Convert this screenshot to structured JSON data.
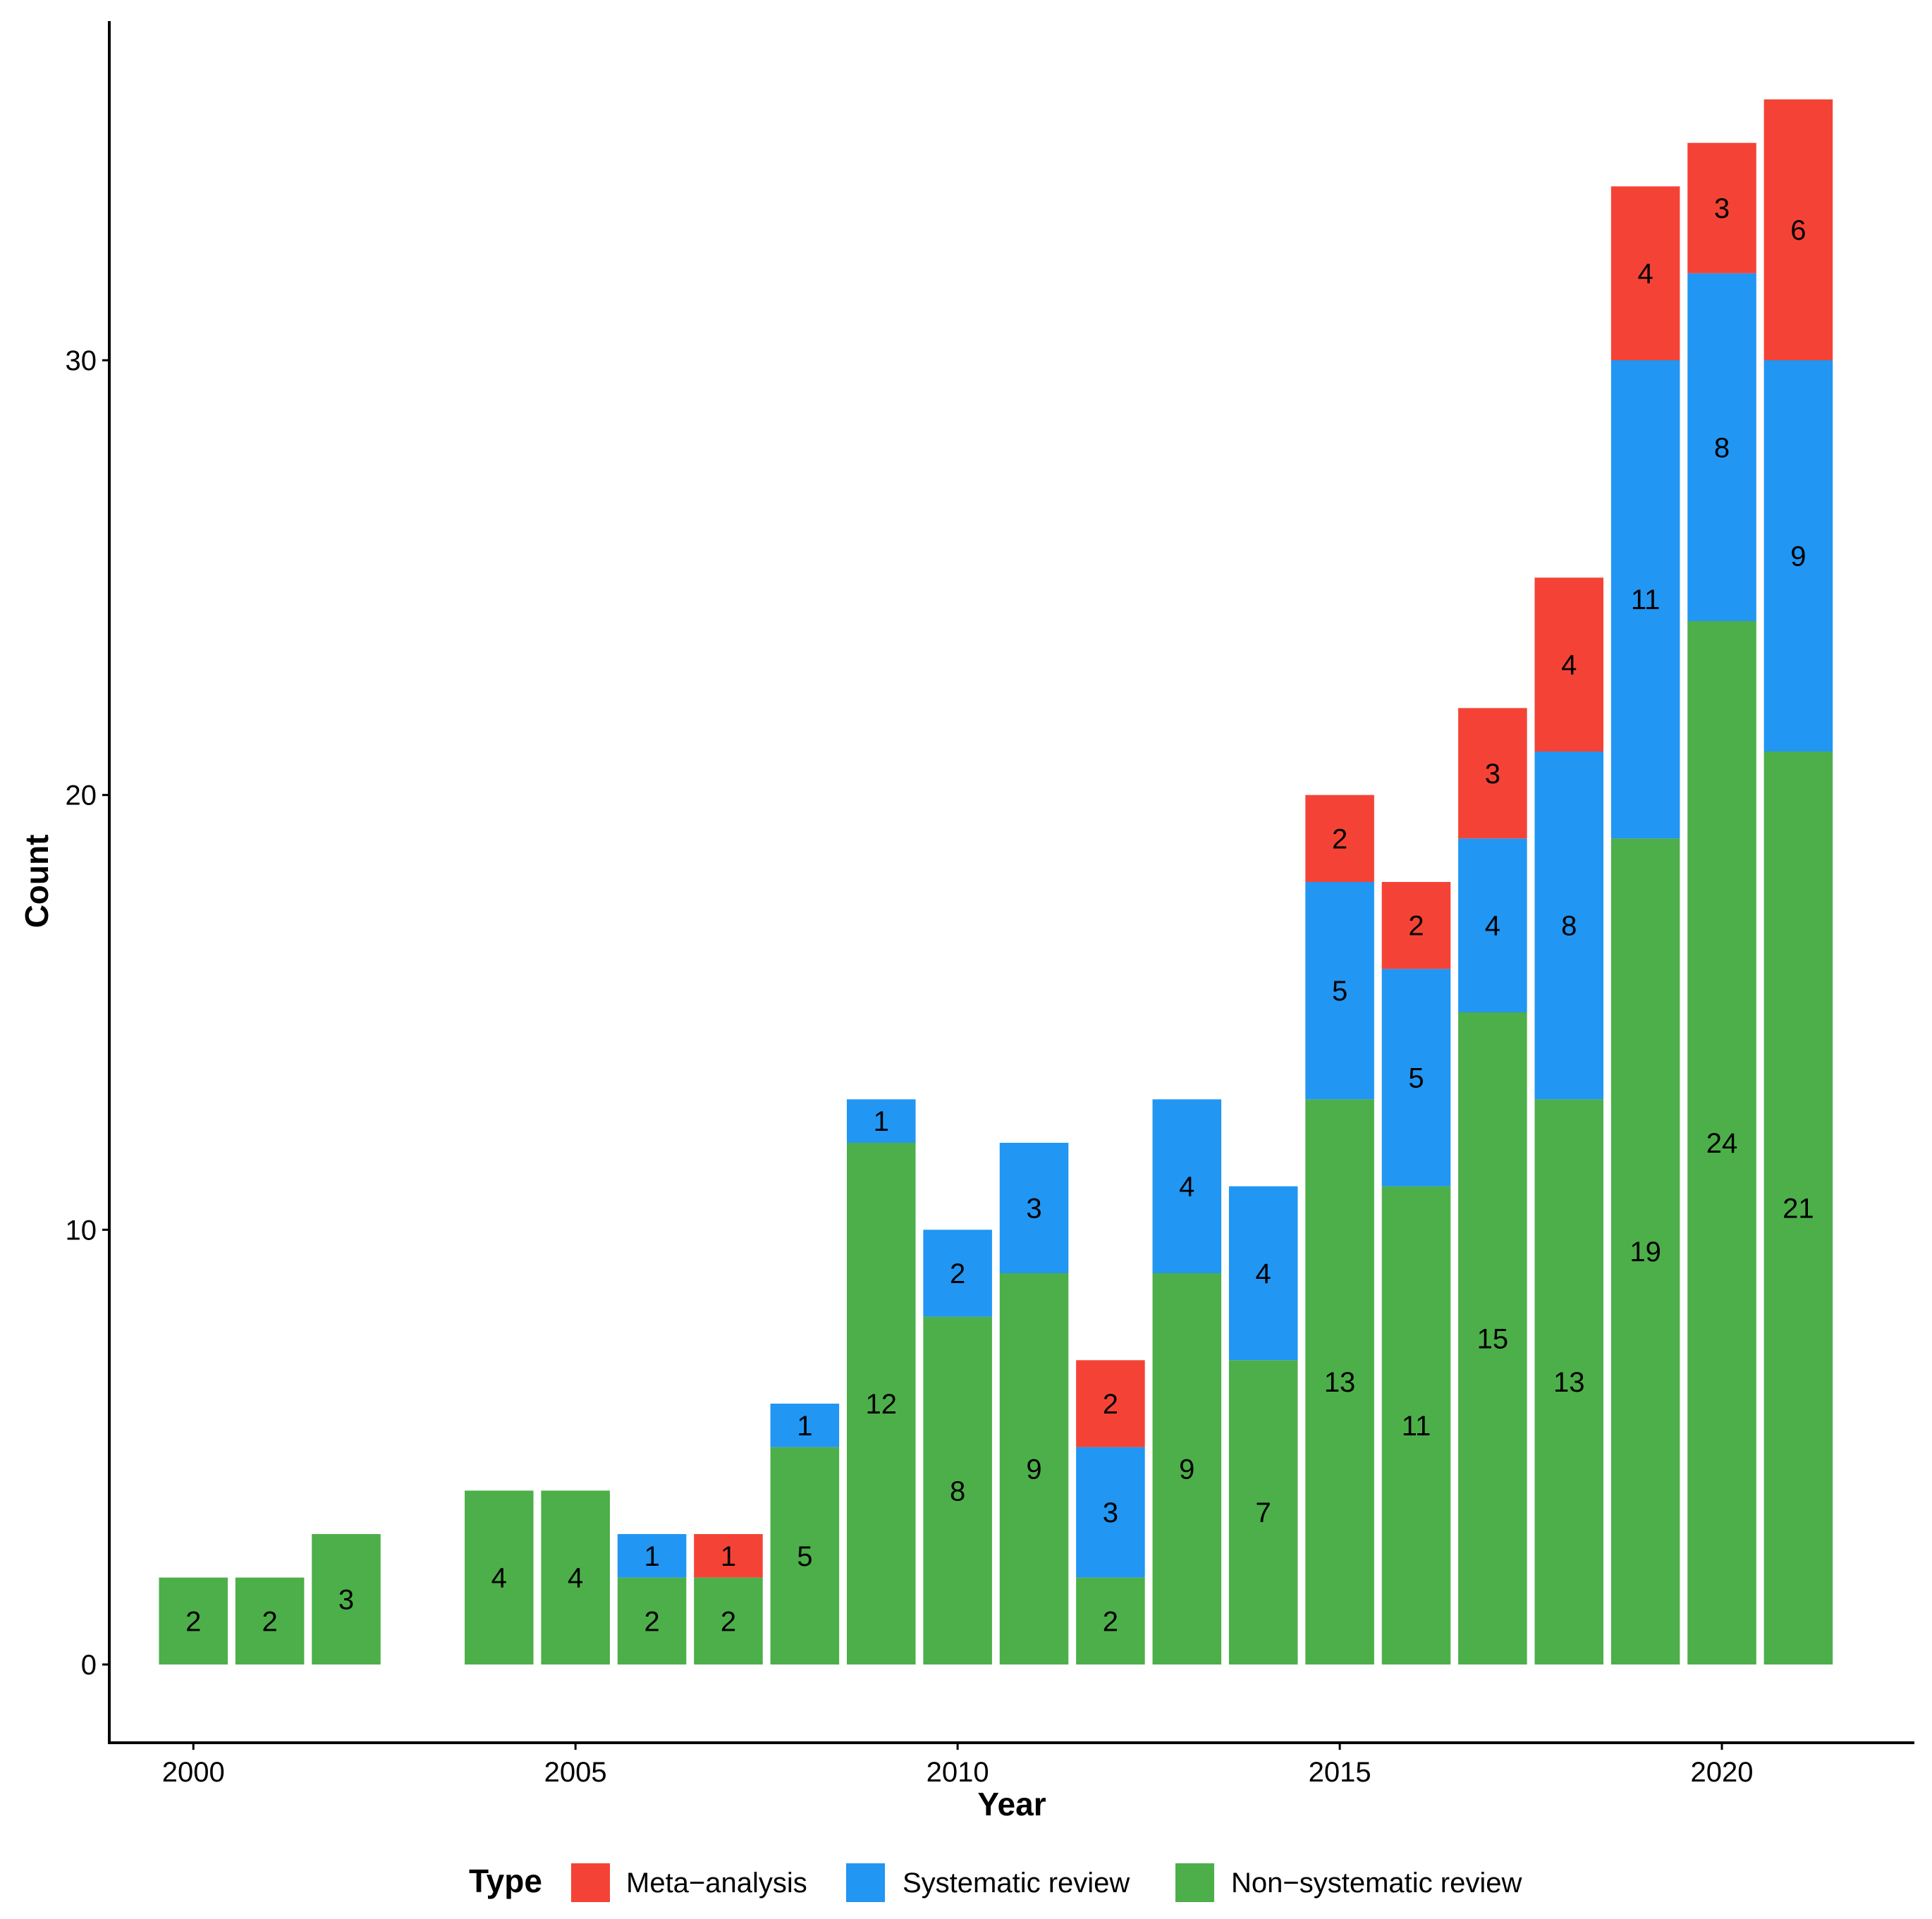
{
  "chart_data": {
    "type": "bar",
    "stacked": true,
    "xlabel": "Year",
    "ylabel": "Count",
    "x_ticks": [
      "2000",
      "2005",
      "2010",
      "2015",
      "2020"
    ],
    "y_ticks": [
      "0",
      "10",
      "20",
      "30"
    ],
    "ylim": [
      -1.8,
      37.8
    ],
    "xlim": [
      1998.9,
      2022.5
    ],
    "grid": false,
    "legend": {
      "title": "Type",
      "position": "bottom",
      "entries": [
        "Meta−analysis",
        "Systematic review",
        "Non−systematic review"
      ]
    },
    "years": [
      2000,
      2001,
      2002,
      2004,
      2005,
      2006,
      2007,
      2008,
      2009,
      2010,
      2011,
      2012,
      2013,
      2014,
      2015,
      2016,
      2017,
      2018,
      2019,
      2020,
      2021
    ],
    "series": [
      {
        "name": "Non−systematic review",
        "color": "#4daf4a",
        "values": [
          2,
          2,
          3,
          4,
          4,
          2,
          2,
          5,
          12,
          8,
          9,
          2,
          9,
          7,
          13,
          11,
          15,
          13,
          19,
          24,
          21
        ]
      },
      {
        "name": "Systematic review",
        "color": "#2196f3",
        "values": [
          0,
          0,
          0,
          0,
          0,
          1,
          0,
          1,
          1,
          2,
          3,
          3,
          4,
          4,
          5,
          5,
          4,
          8,
          11,
          8,
          9
        ]
      },
      {
        "name": "Meta−analysis",
        "color": "#f44336",
        "values": [
          0,
          0,
          0,
          0,
          0,
          0,
          1,
          0,
          0,
          0,
          0,
          2,
          0,
          0,
          2,
          2,
          3,
          4,
          4,
          3,
          6
        ]
      }
    ],
    "colors": {
      "Meta−analysis": "#f44336",
      "Systematic review": "#2196f3",
      "Non−systematic review": "#4daf4a"
    }
  }
}
